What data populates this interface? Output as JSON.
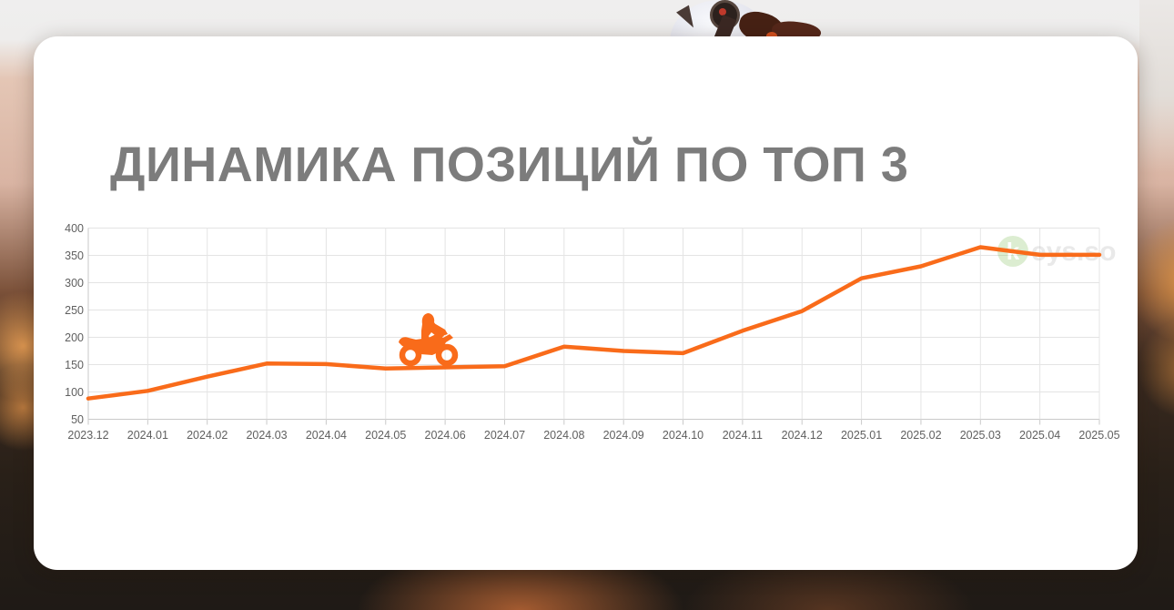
{
  "page": {
    "title": "ДИНАМИКА ПОЗИЦИЙ ПО ТОП 3"
  },
  "watermark": {
    "icon_letter": "k",
    "text": "eys.so"
  },
  "icons": {
    "rider_marker": "motocross-rider-icon",
    "watermark_logo": "keys-so-logo-icon",
    "helmet_photo": "motorcycle-helmet-image"
  },
  "colors": {
    "accent_line": "#f96b1a",
    "title_text": "#7c7c7c",
    "axis_text": "#5f5f5f",
    "grid_line": "#e4e4e4",
    "axis_line": "#c9c9c9",
    "watermark_green": "#7fbe58",
    "watermark_text": "#c9c9c9",
    "card_bg": "#ffffff"
  },
  "chart_data": {
    "type": "line",
    "title": "ДИНАМИКА ПОЗИЦИЙ ПО ТОП 3",
    "categories": [
      "2023.12",
      "2024.01",
      "2024.02",
      "2024.03",
      "2024.04",
      "2024.05",
      "2024.06",
      "2024.07",
      "2024.08",
      "2024.09",
      "2024.10",
      "2024.11",
      "2024.12",
      "2025.01",
      "2025.02",
      "2025.03",
      "2025.04",
      "2025.05"
    ],
    "values": [
      88,
      102,
      128,
      152,
      151,
      143,
      145,
      147,
      183,
      175,
      171,
      212,
      248,
      308,
      330,
      365,
      351,
      351
    ],
    "xlabel": "",
    "ylabel": "",
    "ylim": [
      50,
      400
    ],
    "yticks": [
      50,
      100,
      150,
      200,
      250,
      300,
      350,
      400
    ],
    "grid": true,
    "legend": false,
    "line_color": "#f96b1a"
  }
}
